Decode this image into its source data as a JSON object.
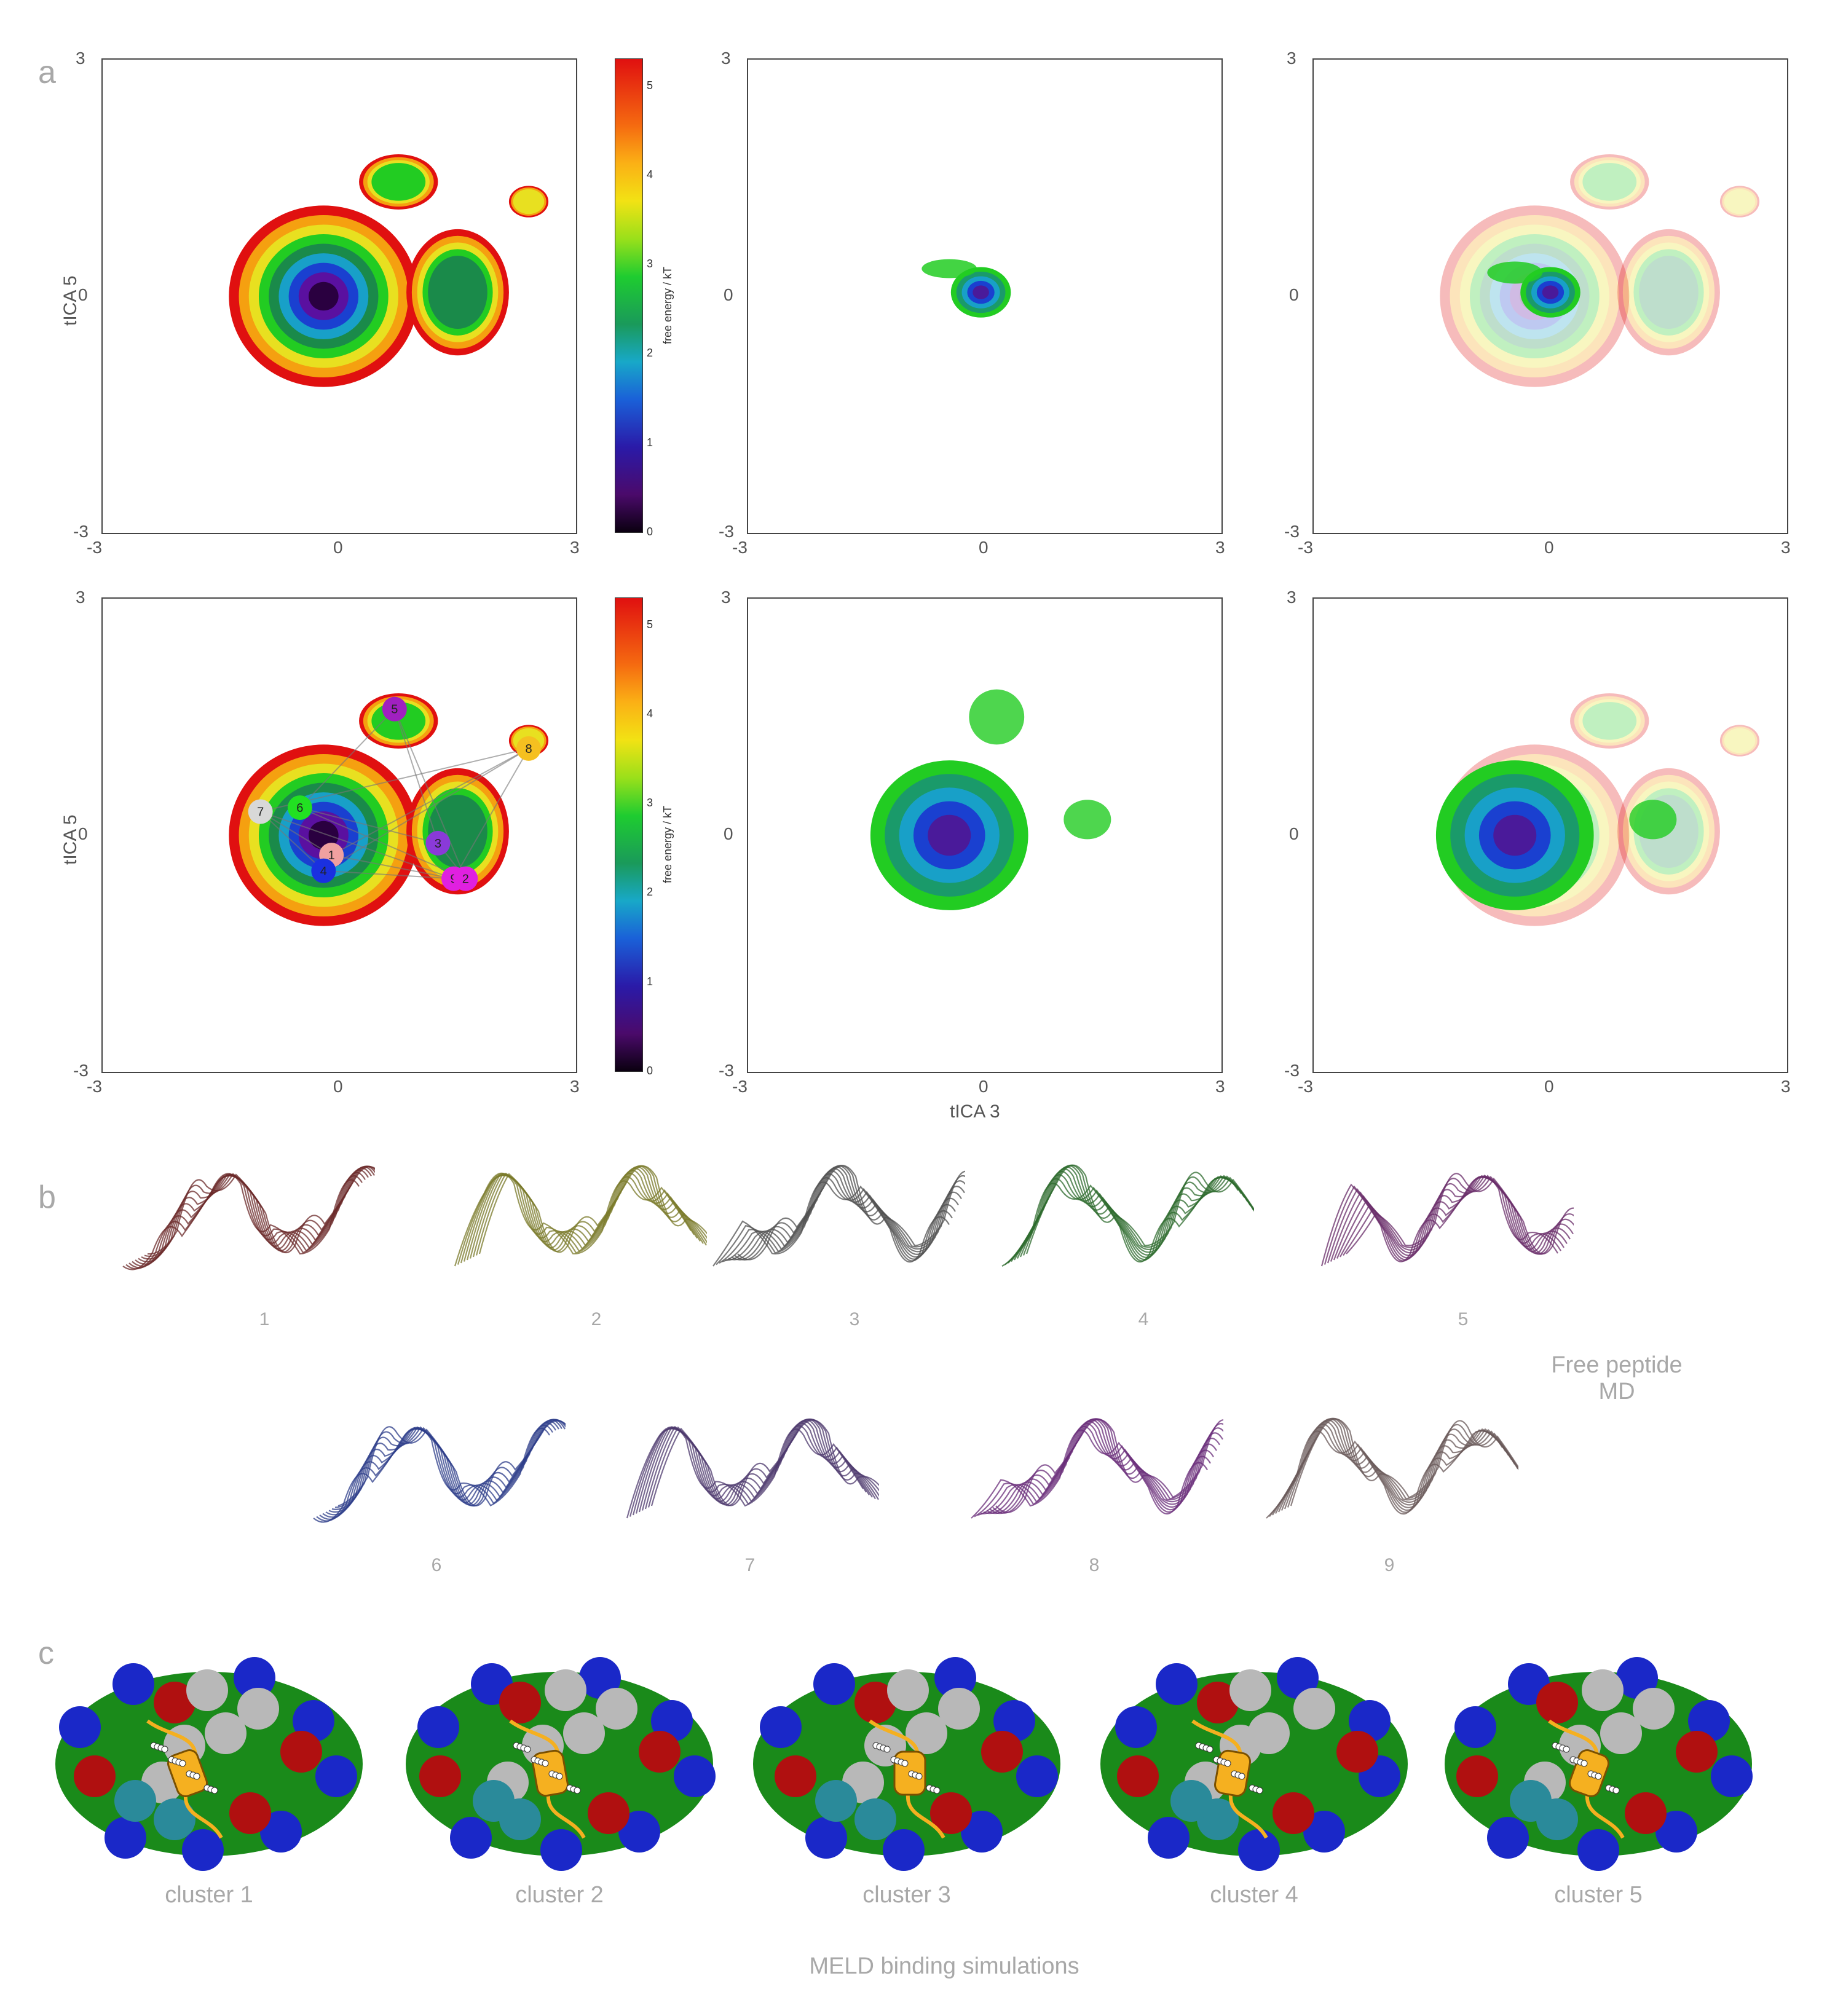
{
  "panels": {
    "a": "a",
    "b": "b",
    "c": "c"
  },
  "axes": {
    "ylabel": "tICA 5",
    "xlabel": "tICA 3",
    "tick_min": "-3",
    "tick_mid": "0",
    "tick_max": "3"
  },
  "colorbar": {
    "label": "free energy / kT",
    "ticks": [
      "0",
      "1",
      "2",
      "3",
      "4",
      "5"
    ]
  },
  "state_markers": [
    {
      "label": "7",
      "color": "#d8d8d8"
    },
    {
      "label": "6",
      "color": "#22e022"
    },
    {
      "label": "1",
      "color": "#f0a0a0"
    },
    {
      "label": "3",
      "color": "#8a3ad8"
    },
    {
      "label": "9",
      "color": "#e020e0"
    },
    {
      "label": "2",
      "color": "#e020e0"
    },
    {
      "label": "8",
      "color": "#f5c020"
    },
    {
      "label": "5",
      "color": "#a020c0"
    },
    {
      "label": "4",
      "color": "#1a30e0"
    }
  ],
  "structures": {
    "row1": [
      "1",
      "2",
      "3",
      "4",
      "5"
    ],
    "row2": [
      "6",
      "7",
      "8",
      "9"
    ],
    "colors": [
      "#6b2a2a",
      "#7a7a2a",
      "#505050",
      "#2e6b2e",
      "#6a2e6a",
      "#2e3e8a",
      "#4e3a6e",
      "#6a2e7a",
      "#6a5a5a"
    ]
  },
  "free_peptide_caption": {
    "line1": "Free peptide",
    "line2": "MD"
  },
  "clusters": [
    "cluster 1",
    "cluster 2",
    "cluster 3",
    "cluster 4",
    "cluster 5"
  ],
  "meld_caption": "MELD binding simulations",
  "surface_colors": {
    "hydrophobic": "#1a8a1a",
    "positive": "#1a28c8",
    "negative": "#b01010",
    "polar": "#b8b8b8",
    "teal": "#2a8a9a",
    "helix": "#f5b020"
  }
}
